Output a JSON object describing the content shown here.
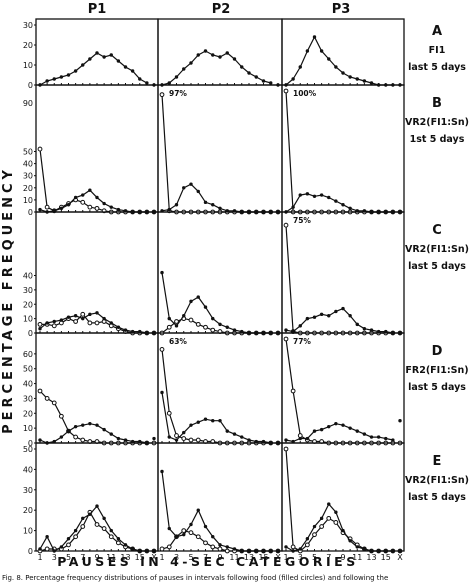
{
  "figure": {
    "column_headers": [
      "P1",
      "P2",
      "P3"
    ],
    "y_axis_label": "PERCENTAGE FREQUENCY",
    "x_axis_label": "PAUSES IN 4-SEC CATEGORIES",
    "caption": "Fig. 8. Percentage frequency distributions of pauses in intervals following food (filled circles) and following the"
  },
  "chart_data": {
    "type": "line",
    "x_ticks": [
      "1",
      "3",
      "5",
      "7",
      "9",
      "11",
      "13",
      "15",
      "X"
    ],
    "x_categories": [
      "1",
      "2",
      "3",
      "4",
      "5",
      "6",
      "7",
      "8",
      "9",
      "10",
      "11",
      "12",
      "13",
      "14",
      "15",
      "16",
      "X"
    ],
    "rows": [
      {
        "letter": "A",
        "condition": [
          "FI1",
          "last 5 days"
        ],
        "ylim": [
          0,
          30
        ],
        "y_ticks": [
          0,
          10,
          20,
          30
        ],
        "panels": [
          {
            "column": "P1",
            "annotation": "",
            "filled": [
              0,
              2,
              3,
              4,
              5,
              7,
              10,
              13,
              16,
              14,
              15,
              12,
              9,
              7,
              3,
              1,
              0
            ],
            "open": []
          },
          {
            "column": "P2",
            "annotation": "",
            "filled": [
              0,
              1,
              4,
              8,
              11,
              15,
              17,
              15,
              14,
              16,
              13,
              9,
              6,
              4,
              2,
              1,
              0
            ],
            "open": []
          },
          {
            "column": "P3",
            "annotation": "",
            "filled": [
              0,
              3,
              9,
              17,
              24,
              17,
              13,
              9,
              6,
              4,
              3,
              2,
              1,
              0,
              0,
              0,
              0
            ],
            "open": []
          }
        ]
      },
      {
        "letter": "B",
        "condition": [
          "VR2(FI1:Sn)",
          "1st 5 days"
        ],
        "ylim": [
          0,
          100
        ],
        "y_ticks": [
          0,
          10,
          20,
          30,
          40,
          50
        ],
        "y_top_tick": "90",
        "panels": [
          {
            "column": "P1",
            "annotation": "",
            "filled": [
              2,
              0,
              1,
              3,
              6,
              12,
              14,
              18,
              12,
              7,
              4,
              2,
              1,
              0,
              0,
              0,
              0
            ],
            "open": [
              52,
              4,
              1,
              4,
              7,
              10,
              8,
              4,
              3,
              1,
              0,
              0,
              0,
              0,
              0,
              0,
              0
            ]
          },
          {
            "column": "P2",
            "annotation": "97%",
            "filled": [
              1,
              2,
              6,
              20,
              23,
              17,
              8,
              6,
              3,
              1,
              1,
              0,
              0,
              0,
              0,
              0,
              0
            ],
            "open": [
              97,
              1,
              0,
              0,
              0,
              0,
              0,
              0,
              0,
              0,
              0,
              0,
              0,
              0,
              0,
              0,
              0
            ]
          },
          {
            "column": "P3",
            "annotation": "100%",
            "filled": [
              0,
              4,
              14,
              15,
              13,
              14,
              12,
              9,
              6,
              3,
              1,
              1,
              0,
              0,
              0,
              0,
              0
            ],
            "open": [
              100,
              0,
              0,
              0,
              0,
              0,
              0,
              0,
              0,
              0,
              0,
              0,
              0,
              0,
              0,
              0,
              0
            ]
          }
        ]
      },
      {
        "letter": "C",
        "condition": [
          "VR2(FI1:Sn)",
          "last 5 days"
        ],
        "ylim": [
          0,
          80
        ],
        "y_ticks": [
          0,
          10,
          20,
          30,
          40
        ],
        "y_top_tick": "",
        "panels": [
          {
            "column": "P1",
            "annotation": "",
            "filled": [
              3,
              7,
              8,
              9,
              11,
              12,
              10,
              13,
              14,
              10,
              7,
              4,
              2,
              1,
              1,
              0,
              0
            ],
            "open": [
              6,
              6,
              5,
              7,
              10,
              8,
              13,
              7,
              7,
              8,
              5,
              3,
              1,
              0,
              0,
              0,
              0
            ]
          },
          {
            "column": "P2",
            "annotation": "",
            "filled": [
              42,
              10,
              5,
              12,
              22,
              25,
              18,
              10,
              6,
              4,
              2,
              1,
              0,
              0,
              0,
              0,
              0
            ],
            "open": [
              0,
              4,
              8,
              10,
              9,
              6,
              4,
              2,
              1,
              0,
              0,
              0,
              0,
              0,
              0,
              0,
              0
            ]
          },
          {
            "column": "P3",
            "annotation": "75%",
            "filled": [
              2,
              1,
              5,
              10,
              11,
              13,
              12,
              15,
              17,
              12,
              6,
              3,
              2,
              1,
              1,
              0,
              0
            ],
            "open": [
              75,
              1,
              0,
              0,
              0,
              0,
              0,
              0,
              0,
              0,
              0,
              0,
              0,
              0,
              0,
              0,
              0
            ]
          }
        ]
      },
      {
        "letter": "D",
        "condition": [
          "FR2(FI1:Sn)",
          "last 5 days"
        ],
        "ylim": [
          0,
          70
        ],
        "y_ticks": [
          0,
          10,
          20,
          30,
          40,
          50,
          60
        ],
        "y_top_tick": "",
        "panels": [
          {
            "column": "P1",
            "annotation": "",
            "filled": [
              2,
              0,
              1,
              4,
              8,
              11,
              12,
              13,
              12,
              9,
              6,
              3,
              2,
              1,
              1,
              0,
              3
            ],
            "open": [
              35,
              30,
              27,
              18,
              8,
              4,
              2,
              1,
              1,
              0,
              0,
              0,
              0,
              0,
              0,
              0,
              0
            ]
          },
          {
            "column": "P2",
            "annotation": "63%",
            "filled": [
              34,
              4,
              2,
              7,
              12,
              14,
              16,
              15,
              15,
              8,
              6,
              4,
              2,
              1,
              1,
              0,
              0
            ],
            "open": [
              63,
              20,
              5,
              3,
              2,
              2,
              1,
              1,
              0,
              0,
              0,
              0,
              0,
              0,
              0,
              0,
              0
            ]
          },
          {
            "column": "P3",
            "annotation": "77%",
            "filled": [
              2,
              1,
              3,
              3,
              8,
              9,
              11,
              13,
              12,
              10,
              8,
              6,
              4,
              4,
              3,
              2,
              15
            ],
            "open": [
              77,
              35,
              5,
              2,
              1,
              1,
              0,
              0,
              0,
              0,
              0,
              0,
              0,
              0,
              0,
              0,
              0
            ]
          }
        ]
      },
      {
        "letter": "E",
        "condition": [
          "VR2(FI1:Sn)",
          "last 5 days"
        ],
        "ylim": [
          0,
          50
        ],
        "y_ticks": [
          0,
          10,
          20,
          30,
          40,
          50
        ],
        "y_top_tick": "",
        "panels": [
          {
            "column": "P1",
            "annotation": "",
            "filled": [
              1,
              7,
              0,
              2,
              6,
              10,
              16,
              18,
              22,
              16,
              10,
              6,
              3,
              1,
              0,
              0,
              0
            ],
            "open": [
              0,
              1,
              1,
              1,
              3,
              7,
              12,
              19,
              13,
              11,
              7,
              4,
              2,
              1,
              0,
              0,
              0
            ]
          },
          {
            "column": "P2",
            "annotation": "",
            "filled": [
              39,
              11,
              7,
              8,
              13,
              20,
              12,
              7,
              3,
              2,
              1,
              0,
              0,
              0,
              0,
              0,
              0
            ],
            "open": [
              1,
              2,
              7,
              10,
              9,
              7,
              4,
              2,
              1,
              0,
              0,
              0,
              0,
              0,
              0,
              0,
              0
            ]
          },
          {
            "column": "P3",
            "annotation": "",
            "filled": [
              2,
              0,
              1,
              6,
              12,
              16,
              23,
              19,
              10,
              5,
              2,
              1,
              0,
              0,
              0,
              0,
              0
            ],
            "open": [
              54,
              2,
              0,
              3,
              8,
              12,
              16,
              14,
              9,
              6,
              3,
              1,
              0,
              0,
              0,
              0,
              0
            ]
          }
        ]
      }
    ]
  }
}
